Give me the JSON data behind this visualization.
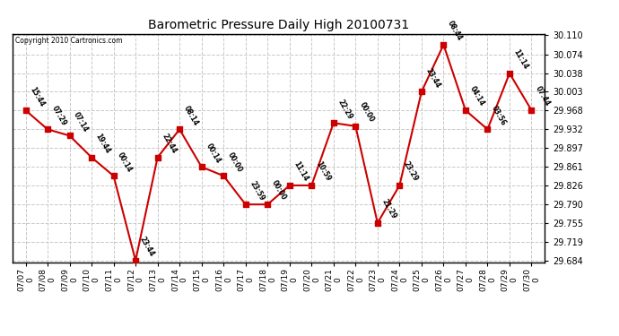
{
  "title": "Barometric Pressure Daily High 20100731",
  "copyright": "Copyright 2010 Cartronics.com",
  "background_color": "#ffffff",
  "plot_bg_color": "#ffffff",
  "grid_color": "#c8c8c8",
  "line_color": "#cc0000",
  "marker_color": "#cc0000",
  "text_color": "#000000",
  "dates": [
    "07/07",
    "07/08",
    "07/09",
    "07/10",
    "07/11",
    "07/12",
    "07/13",
    "07/14",
    "07/15",
    "07/16",
    "07/17",
    "07/18",
    "07/19",
    "07/20",
    "07/21",
    "07/22",
    "07/23",
    "07/24",
    "07/25",
    "07/26",
    "07/27",
    "07/28",
    "07/29",
    "07/30"
  ],
  "values": [
    29.968,
    29.932,
    29.92,
    29.879,
    29.844,
    29.684,
    29.879,
    29.932,
    29.861,
    29.844,
    29.79,
    29.79,
    29.826,
    29.826,
    29.944,
    29.938,
    29.755,
    29.826,
    30.003,
    30.092,
    29.968,
    29.932,
    30.038,
    29.968
  ],
  "labels": [
    "15:44",
    "07:29",
    "07:14",
    "19:44",
    "00:14",
    "23:44",
    "22:44",
    "08:14",
    "00:14",
    "00:00",
    "23:59",
    "00:00",
    "11:14",
    "10:59",
    "22:29",
    "00:00",
    "21:29",
    "23:29",
    "23:44",
    "08:44",
    "04:14",
    "03:56",
    "11:14",
    "07:44"
  ],
  "ylim_min": 29.684,
  "ylim_max": 30.11,
  "yticks": [
    29.684,
    29.719,
    29.755,
    29.79,
    29.826,
    29.861,
    29.897,
    29.932,
    29.968,
    30.003,
    30.038,
    30.074,
    30.11
  ]
}
